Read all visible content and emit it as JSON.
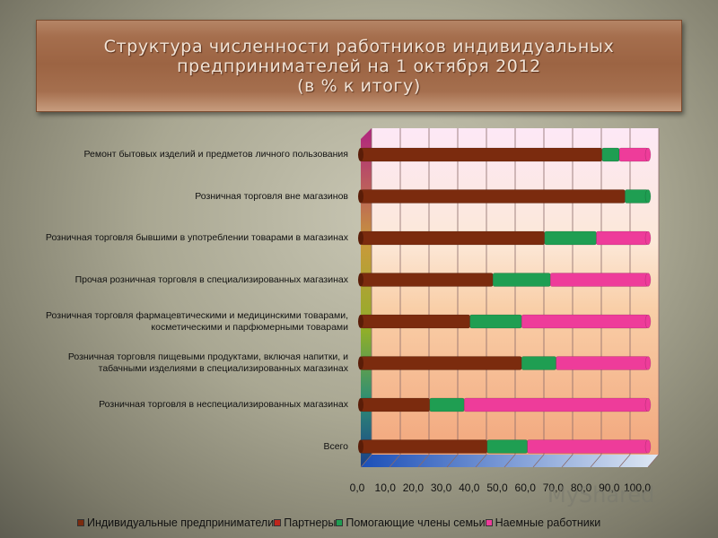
{
  "title": {
    "line1": "Структура численности работников индивидуальных",
    "line2": "предпринимателей на 1 октября 2012",
    "line3": "(в % к итогу)"
  },
  "watermark": "MyShared",
  "colors": {
    "series": [
      "#7b2b0e",
      "#c0261c",
      "#1f9e52",
      "#ee3c9a"
    ]
  },
  "legend": [
    "Индивидуальные предприниматели",
    "Партнеры",
    "Помогающие члены семьи",
    "Наемные работники"
  ],
  "chart_data": {
    "type": "bar",
    "orientation": "horizontal",
    "stacked": "percent",
    "title": "Структура численности работников индивидуальных предпринимателей на 1 октября 2012 (в % к итогу)",
    "categories": [
      "Ремонт бытовых изделий и предметов личного пользования",
      "Розничная торговля вне магазинов",
      "Розничная торговля бывшими в употреблении товарами в магазинах",
      "Прочая розничная торговля в специализированных магазинах",
      "Розничная торговля фармацевтическими и медицинскими товарами, косметическими и парфюмерными товарами",
      "Розничная торговля пищевыми продуктами, включая напитки, и табачными изделиями в специализированных магазинах",
      "Розничная торговля в неспециализированных магазинах",
      "Всего"
    ],
    "series": [
      {
        "name": "Индивидуальные предприниматели",
        "values": [
          84,
          92,
          64,
          46,
          38,
          56,
          24,
          44
        ]
      },
      {
        "name": "Партнеры",
        "values": [
          0,
          0,
          0,
          0,
          0,
          0,
          0,
          0
        ]
      },
      {
        "name": "Помогающие члены семьи",
        "values": [
          6,
          8,
          18,
          20,
          18,
          12,
          12,
          14
        ]
      },
      {
        "name": "Наемные работники",
        "values": [
          10,
          0,
          18,
          34,
          44,
          32,
          64,
          42
        ]
      }
    ],
    "x_ticks": [
      "0,0",
      "10,0",
      "20,0",
      "30,0",
      "40,0",
      "50,0",
      "60,0",
      "70,0",
      "80,0",
      "90,0",
      "100,0"
    ],
    "xlim": [
      0,
      100
    ],
    "grid": true,
    "legend_position": "bottom"
  }
}
